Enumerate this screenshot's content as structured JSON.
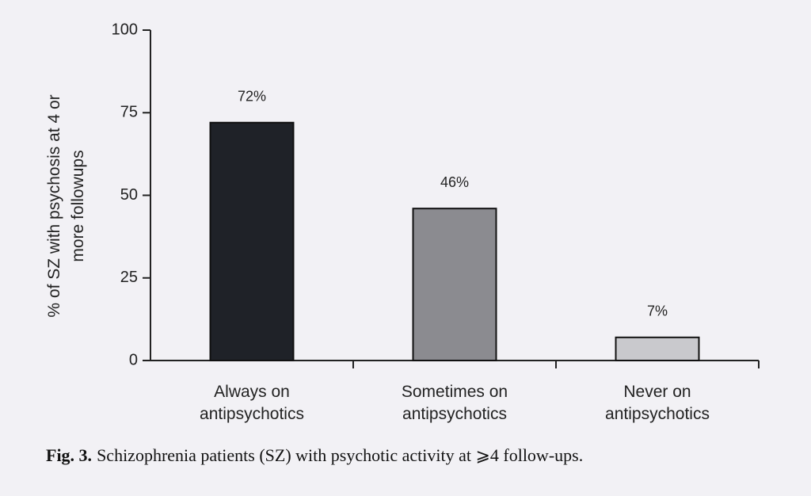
{
  "chart_data": {
    "type": "bar",
    "y_label": "% of SZ with psychosis at 4 or more followups",
    "categories": [
      "Always on antipsychotics",
      "Sometimes on antipsychotics",
      "Never on antipsychotics"
    ],
    "values": [
      72,
      46,
      7
    ],
    "value_labels": [
      "72%",
      "46%",
      "7%"
    ],
    "colors": [
      "#1f2228",
      "#8b8b90",
      "#c9c9cd"
    ],
    "ylim": [
      0,
      100
    ],
    "yticks": [
      0,
      25,
      50,
      75,
      100
    ],
    "caption_label": "Fig. 3.",
    "caption": "Schizophrenia patients (SZ) with psychotic activity at ⩾4 follow-ups."
  }
}
